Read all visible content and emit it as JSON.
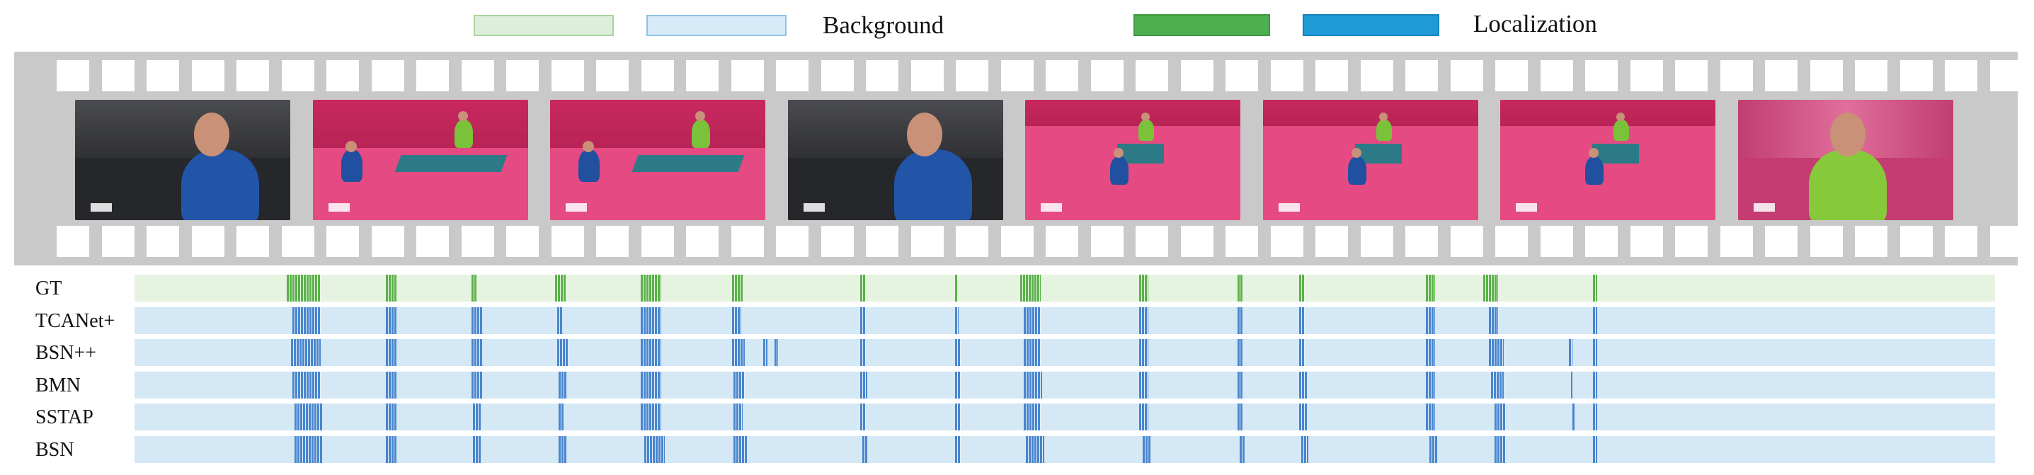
{
  "legend": {
    "background_label": "Background",
    "localization_label": "Localization",
    "gt_background_color": "#dcefd8",
    "gt_background_border": "#a9d39e",
    "pred_background_color": "#d6eaf8",
    "pred_background_border": "#8ec3e6",
    "gt_localization_color": "#4caf50",
    "pred_localization_color": "#1e9ad6"
  },
  "filmstrip": {
    "frames": [
      {
        "scene": "closeup-blue",
        "description_icon": "player-closeup-icon"
      },
      {
        "scene": "court",
        "description_icon": "table-tennis-rally-icon"
      },
      {
        "scene": "court",
        "description_icon": "table-tennis-rally-icon"
      },
      {
        "scene": "closeup-blue-dark",
        "description_icon": "player-closeup-icon"
      },
      {
        "scene": "court-wide",
        "description_icon": "table-tennis-rally-icon"
      },
      {
        "scene": "court-wide",
        "description_icon": "table-tennis-rally-icon"
      },
      {
        "scene": "court-wide",
        "description_icon": "table-tennis-rally-icon"
      },
      {
        "scene": "closeup-green",
        "description_icon": "player-closeup-icon"
      }
    ]
  },
  "tracks": {
    "time_range": [
      0,
      1000
    ],
    "gt_segment_color": "#5bb24a",
    "pred_segment_color": "#4a86cf",
    "gt_track_color": "#e6f3e1",
    "pred_track_color": "#d5e8f5",
    "rows": [
      {
        "name": "GT",
        "kind": "gt",
        "segments": [
          [
            82,
            100
          ],
          [
            135,
            141
          ],
          [
            181,
            184
          ],
          [
            226,
            232
          ],
          [
            272,
            283
          ],
          [
            321,
            327
          ],
          [
            390,
            393
          ],
          [
            441,
            442
          ],
          [
            476,
            487
          ],
          [
            540,
            545
          ],
          [
            593,
            596
          ],
          [
            626,
            629
          ],
          [
            694,
            699
          ],
          [
            725,
            733
          ],
          [
            784,
            786
          ]
        ]
      },
      {
        "name": "TCANet+",
        "kind": "pred",
        "segments": [
          [
            85,
            100
          ],
          [
            135,
            141
          ],
          [
            181,
            187
          ],
          [
            227,
            230
          ],
          [
            272,
            283
          ],
          [
            321,
            326
          ],
          [
            390,
            393
          ],
          [
            441,
            443
          ],
          [
            478,
            487
          ],
          [
            540,
            545
          ],
          [
            593,
            596
          ],
          [
            626,
            629
          ],
          [
            694,
            699
          ],
          [
            728,
            733
          ],
          [
            784,
            786
          ]
        ]
      },
      {
        "name": "BSN++",
        "kind": "pred",
        "segments": [
          [
            84,
            100
          ],
          [
            135,
            141
          ],
          [
            181,
            187
          ],
          [
            227,
            233
          ],
          [
            272,
            283
          ],
          [
            321,
            328
          ],
          [
            338,
            340
          ],
          [
            344,
            346
          ],
          [
            390,
            393
          ],
          [
            441,
            444
          ],
          [
            478,
            487
          ],
          [
            540,
            545
          ],
          [
            593,
            596
          ],
          [
            626,
            629
          ],
          [
            694,
            699
          ],
          [
            728,
            736
          ],
          [
            771,
            773
          ],
          [
            784,
            786
          ]
        ]
      },
      {
        "name": "BMN",
        "kind": "pred",
        "segments": [
          [
            85,
            100
          ],
          [
            135,
            141
          ],
          [
            181,
            187
          ],
          [
            228,
            232
          ],
          [
            272,
            283
          ],
          [
            322,
            328
          ],
          [
            390,
            394
          ],
          [
            441,
            444
          ],
          [
            478,
            488
          ],
          [
            540,
            545
          ],
          [
            593,
            596
          ],
          [
            626,
            630
          ],
          [
            694,
            699
          ],
          [
            729,
            736
          ],
          [
            772,
            773
          ],
          [
            784,
            786
          ]
        ]
      },
      {
        "name": "SSTAP",
        "kind": "pred",
        "segments": [
          [
            86,
            101
          ],
          [
            135,
            141
          ],
          [
            182,
            186
          ],
          [
            228,
            231
          ],
          [
            272,
            283
          ],
          [
            322,
            327
          ],
          [
            390,
            393
          ],
          [
            441,
            444
          ],
          [
            478,
            487
          ],
          [
            540,
            545
          ],
          [
            593,
            596
          ],
          [
            626,
            630
          ],
          [
            694,
            699
          ],
          [
            731,
            737
          ],
          [
            773,
            774
          ],
          [
            784,
            786
          ]
        ]
      },
      {
        "name": "BSN",
        "kind": "pred",
        "segments": [
          [
            86,
            101
          ],
          [
            135,
            141
          ],
          [
            182,
            186
          ],
          [
            228,
            232
          ],
          [
            274,
            285
          ],
          [
            322,
            329
          ],
          [
            391,
            394
          ],
          [
            441,
            444
          ],
          [
            479,
            489
          ],
          [
            542,
            546
          ],
          [
            594,
            597
          ],
          [
            627,
            631
          ],
          [
            696,
            700
          ],
          [
            731,
            737
          ],
          [
            784,
            786
          ]
        ]
      }
    ]
  }
}
